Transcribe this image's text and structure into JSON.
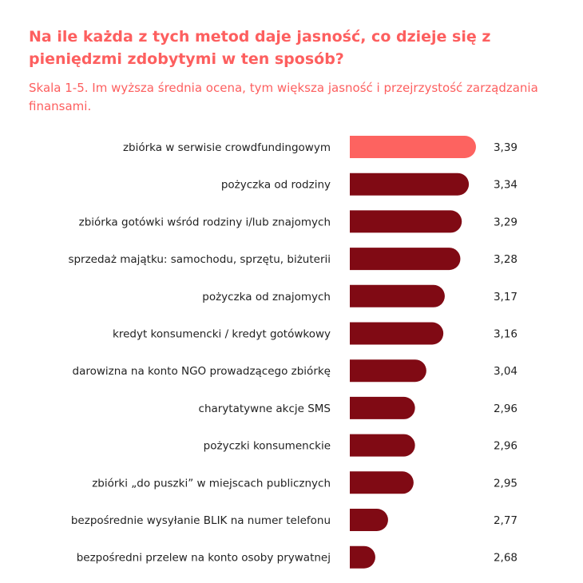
{
  "chart_data": {
    "type": "bar",
    "orientation": "horizontal",
    "title": "Na ile każda z tych metod daje jasność, co dzieje się z pieniędzmi zdobytymi w ten sposób?",
    "subtitle": "Skala 1-5. Im wyższa średnia ocena, tym większa jasność i przejrzystość zarządzania finansami.",
    "categories": [
      "zbiórka w serwisie crowdfundingowym",
      "pożyczka od rodziny",
      "zbiórka gotówki wśród rodziny i/lub znajomych",
      "sprzedaż majątku: samochodu, sprzętu, biżuterii",
      "pożyczka od znajomych",
      "kredyt konsumencki / kredyt gotówkowy",
      "darowizna na konto NGO prowadzącego zbiórkę",
      "charytatywne akcje SMS",
      "pożyczki konsumenckie",
      "zbiórki „do puszki” w miejscach publicznych",
      "bezpośrednie wysyłanie BLIK na numer telefonu",
      "bezpośredni przelew na konto osoby prywatnej"
    ],
    "values": [
      3.39,
      3.34,
      3.29,
      3.28,
      3.17,
      3.16,
      3.04,
      2.96,
      2.96,
      2.95,
      2.77,
      2.68
    ],
    "value_labels": [
      "3,39",
      "3,34",
      "3,29",
      "3,28",
      "3,17",
      "3,16",
      "3,04",
      "2,96",
      "2,96",
      "2,95",
      "2,77",
      "2,68"
    ],
    "xlim": [
      2.5,
      3.5
    ],
    "grid": false,
    "colors": {
      "highlight": "#fd6360",
      "default": "#800a14",
      "title": "#fd5f5f"
    }
  }
}
